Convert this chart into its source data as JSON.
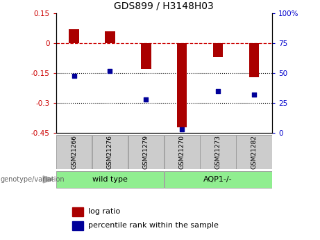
{
  "title": "GDS899 / H3148H03",
  "samples": [
    "GSM21266",
    "GSM21276",
    "GSM21279",
    "GSM21270",
    "GSM21273",
    "GSM21282"
  ],
  "log_ratios": [
    0.07,
    0.06,
    -0.13,
    -0.42,
    -0.07,
    -0.17
  ],
  "percentile_ranks": [
    48,
    52,
    28,
    3,
    35,
    32
  ],
  "bar_color": "#aa0000",
  "dot_color": "#000099",
  "ylim_left": [
    -0.45,
    0.15
  ],
  "ylim_right": [
    0,
    100
  ],
  "yticks_left": [
    0.15,
    0.0,
    -0.15,
    -0.3,
    -0.45
  ],
  "yticks_right": [
    100,
    75,
    50,
    25,
    0
  ],
  "dotted_lines": [
    -0.15,
    -0.3
  ],
  "background_color": "#ffffff",
  "sample_box_color": "#cccccc",
  "group1_label": "wild type",
  "group2_label": "AQP1-/-",
  "group_color": "#90EE90",
  "legend_log_ratio": "log ratio",
  "legend_percentile": "percentile rank within the sample",
  "genotype_label": "genotype/variation",
  "group1_indices": [
    0,
    1,
    2
  ],
  "group2_indices": [
    3,
    4,
    5
  ]
}
